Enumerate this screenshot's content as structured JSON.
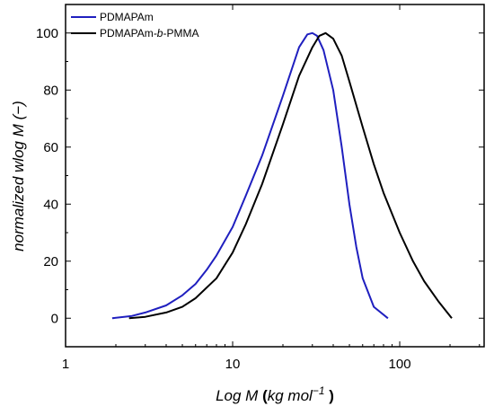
{
  "chart_data": {
    "type": "line",
    "x_scale": "log",
    "xlim": [
      1,
      320
    ],
    "ylim": [
      -10,
      110
    ],
    "x_ticks": [
      1,
      10,
      100
    ],
    "x_tick_labels": [
      "1",
      "10",
      "100"
    ],
    "y_ticks": [
      0,
      20,
      40,
      60,
      80,
      100
    ],
    "y_tick_labels": [
      "0",
      "20",
      "40",
      "60",
      "80",
      "100"
    ],
    "xlabel": {
      "part1": "Log M ",
      "part2": "(",
      "part3": "kg mol",
      "sup": "−1",
      "part4": " )"
    },
    "ylabel": "normalized wlog M (−)",
    "legend_position": "top-left",
    "series": [
      {
        "name": "PDMAPAm",
        "color": "#1f1fbf",
        "x": [
          1.9,
          2.5,
          3.0,
          4.0,
          5.0,
          6.0,
          7.0,
          8.0,
          10.0,
          12.0,
          15.0,
          20.0,
          25.0,
          28.0,
          30.0,
          32.0,
          35.0,
          40.0,
          45.0,
          50.0,
          55.0,
          60.0,
          70.0,
          85.0
        ],
        "y": [
          0,
          0.8,
          2,
          4.5,
          8,
          12,
          17,
          22,
          32,
          43,
          57,
          78,
          95,
          99.5,
          100,
          99,
          94,
          80,
          60,
          40,
          25,
          14,
          4,
          0
        ]
      },
      {
        "name": "PDMAPAm-b-PMMA",
        "color": "#000000",
        "x": [
          2.4,
          3.0,
          4.0,
          5.0,
          6.0,
          8.0,
          10.0,
          12.0,
          15.0,
          20.0,
          25.0,
          30.0,
          33.0,
          36.0,
          40.0,
          45.0,
          50.0,
          60.0,
          70.0,
          80.0,
          100.0,
          120.0,
          140.0,
          170.0,
          205.0
        ],
        "y": [
          0,
          0.5,
          2,
          4,
          7,
          14,
          23,
          33,
          47,
          68,
          85,
          95,
          99,
          100,
          98,
          92,
          83,
          67,
          54,
          44,
          30,
          20,
          13,
          6,
          0
        ]
      }
    ]
  }
}
